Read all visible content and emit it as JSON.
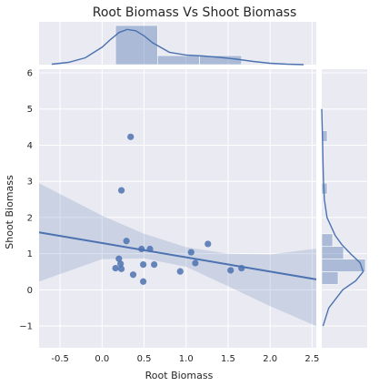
{
  "chart_data": {
    "type": "scatter",
    "title": "Root Biomass Vs Shoot Biomass",
    "xlabel": "Root Biomass",
    "ylabel": "Shoot Biomass",
    "xlim": [
      -0.75,
      2.55
    ],
    "ylim": [
      -1.6,
      6.1
    ],
    "x_ticks": [
      "-0.5",
      "0.0",
      "0.5",
      "1.0",
      "1.5",
      "2.0",
      "2.5"
    ],
    "x_tick_values": [
      -0.5,
      0.0,
      0.5,
      1.0,
      1.5,
      2.0,
      2.5
    ],
    "y_ticks": [
      "−1",
      "0",
      "1",
      "2",
      "3",
      "4",
      "5",
      "6"
    ],
    "y_tick_values": [
      -1,
      0,
      1,
      2,
      3,
      4,
      5,
      6
    ],
    "grid": true,
    "points": [
      {
        "x": 0.34,
        "y": 4.23
      },
      {
        "x": 0.23,
        "y": 2.75
      },
      {
        "x": 0.29,
        "y": 1.35
      },
      {
        "x": 1.26,
        "y": 1.27
      },
      {
        "x": 0.47,
        "y": 1.13
      },
      {
        "x": 0.57,
        "y": 1.13
      },
      {
        "x": 1.06,
        "y": 1.04
      },
      {
        "x": 0.2,
        "y": 0.86
      },
      {
        "x": 1.11,
        "y": 0.74
      },
      {
        "x": 0.22,
        "y": 0.72
      },
      {
        "x": 0.49,
        "y": 0.7
      },
      {
        "x": 0.62,
        "y": 0.7
      },
      {
        "x": 0.16,
        "y": 0.6
      },
      {
        "x": 0.23,
        "y": 0.58
      },
      {
        "x": 1.66,
        "y": 0.6
      },
      {
        "x": 1.53,
        "y": 0.54
      },
      {
        "x": 0.93,
        "y": 0.51
      },
      {
        "x": 0.37,
        "y": 0.42
      },
      {
        "x": 0.49,
        "y": 0.23
      }
    ],
    "regression": {
      "x": [
        -0.75,
        2.55
      ],
      "y": [
        1.59,
        0.29
      ]
    },
    "confidence_band": {
      "x": [
        -0.75,
        0.0,
        0.5,
        1.0,
        1.5,
        2.0,
        2.55
      ],
      "upper": [
        2.95,
        2.05,
        1.55,
        1.18,
        1.0,
        0.98,
        1.14
      ],
      "lower": [
        0.23,
        0.85,
        0.87,
        0.64,
        0.1,
        -0.45,
        -1.0
      ]
    },
    "x_histogram": {
      "bins": [
        [
          0.16,
          0.66
        ],
        [
          0.66,
          1.16
        ],
        [
          1.16,
          1.66
        ]
      ],
      "counts": [
        13,
        3,
        3
      ]
    },
    "y_histogram": {
      "bins": [
        [
          0.15,
          0.5
        ],
        [
          0.5,
          0.85
        ],
        [
          0.85,
          1.2
        ],
        [
          1.2,
          1.55
        ],
        [
          2.65,
          2.95
        ],
        [
          4.1,
          4.4
        ]
      ],
      "counts": [
        3,
        8,
        4,
        2,
        1,
        1
      ]
    },
    "x_kde": {
      "x": [
        -0.6,
        -0.4,
        -0.2,
        0.0,
        0.1,
        0.2,
        0.3,
        0.4,
        0.5,
        0.6,
        0.8,
        1.0,
        1.2,
        1.4,
        1.6,
        1.8,
        2.0,
        2.2,
        2.4
      ],
      "density": [
        0.01,
        0.05,
        0.15,
        0.38,
        0.55,
        0.7,
        0.77,
        0.74,
        0.63,
        0.48,
        0.27,
        0.21,
        0.19,
        0.16,
        0.12,
        0.07,
        0.03,
        0.01,
        0.0
      ]
    },
    "y_kde": {
      "y": [
        -1.0,
        -0.5,
        0.0,
        0.25,
        0.5,
        0.75,
        1.0,
        1.25,
        1.5,
        2.0,
        2.5,
        3.0,
        3.5,
        4.0,
        4.5,
        5.0
      ],
      "density": [
        0.03,
        0.16,
        0.48,
        0.78,
        0.95,
        0.88,
        0.66,
        0.46,
        0.31,
        0.12,
        0.06,
        0.04,
        0.03,
        0.02,
        0.01,
        0.0
      ]
    },
    "colors": {
      "point": "#4c72b0",
      "line": "#4c72b0",
      "band": "#4c72b0",
      "hist": "#4c72b0",
      "background": "#eaeaf2",
      "grid": "#ffffff"
    }
  }
}
